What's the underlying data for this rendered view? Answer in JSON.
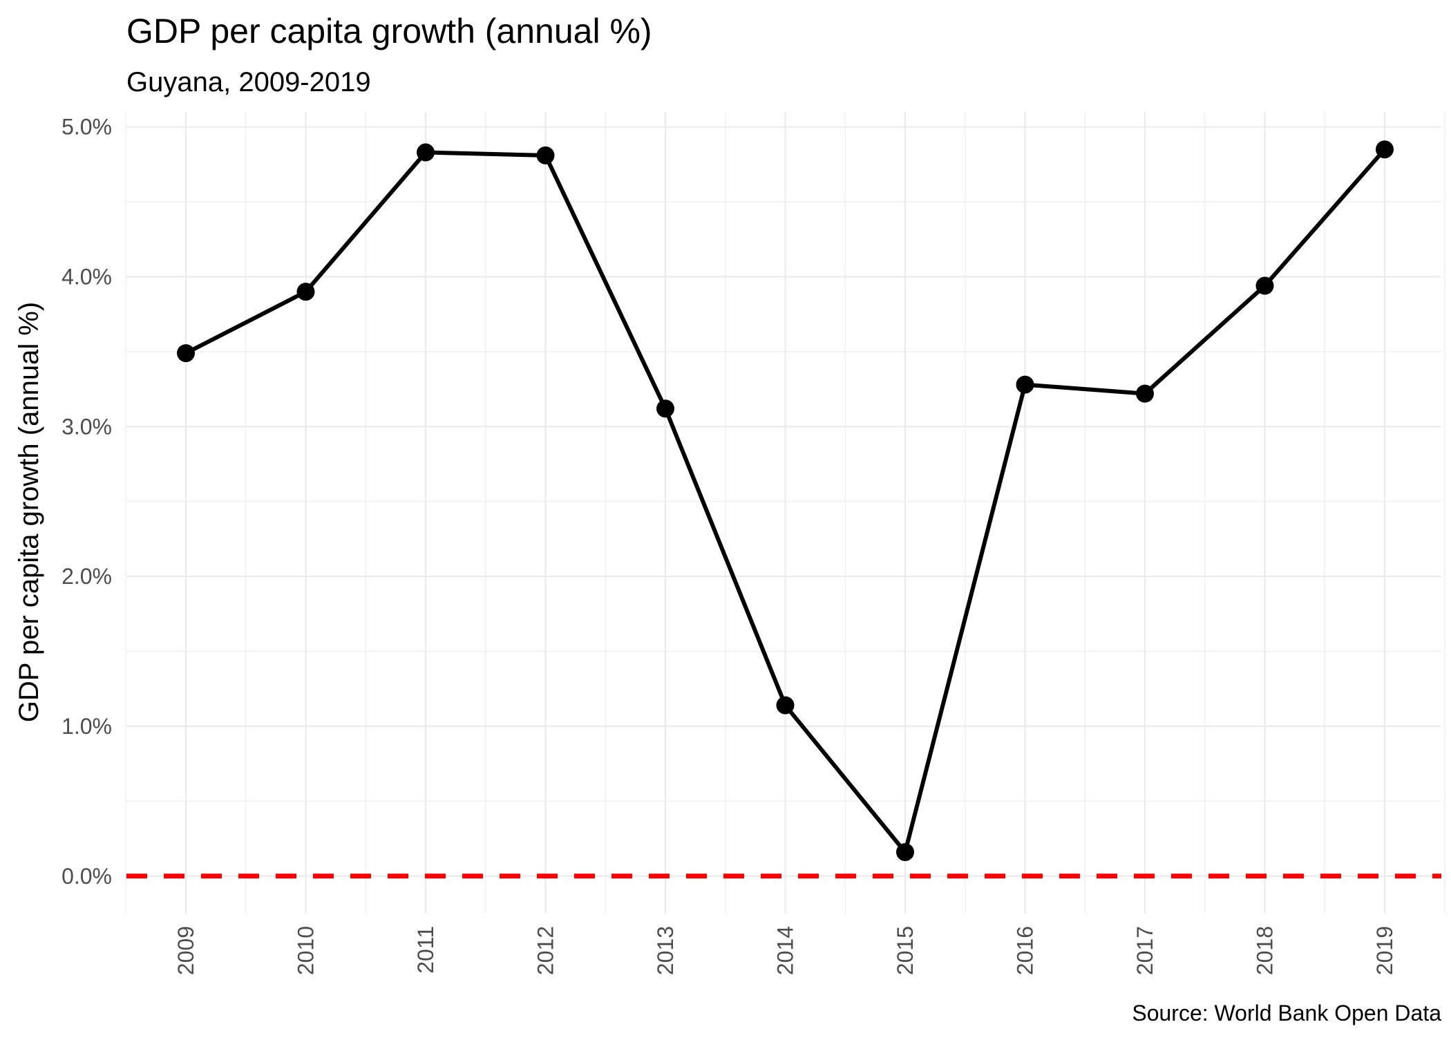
{
  "chart_data": {
    "type": "line",
    "title": "GDP per capita growth (annual %)",
    "subtitle": "Guyana, 2009-2019",
    "xlabel": "",
    "ylabel": "GDP per capita growth (annual %)",
    "caption": "Source: World Bank Open Data",
    "x": [
      "2009",
      "2010",
      "2011",
      "2012",
      "2013",
      "2014",
      "2015",
      "2016",
      "2017",
      "2018",
      "2019"
    ],
    "series": [
      {
        "values": [
          3.49,
          3.9,
          4.83,
          4.81,
          3.12,
          1.14,
          0.16,
          3.28,
          3.22,
          3.94,
          4.85
        ]
      }
    ],
    "y_ticks": [
      "0.0%",
      "1.0%",
      "2.0%",
      "3.0%",
      "4.0%",
      "5.0%"
    ],
    "ylim": [
      -0.25,
      5.1
    ],
    "reference_line": {
      "y": 0,
      "style": "dashed",
      "color": "#ff0000"
    },
    "line_color": "#000000",
    "grid": true,
    "x_tick_rotation": "vertical"
  }
}
